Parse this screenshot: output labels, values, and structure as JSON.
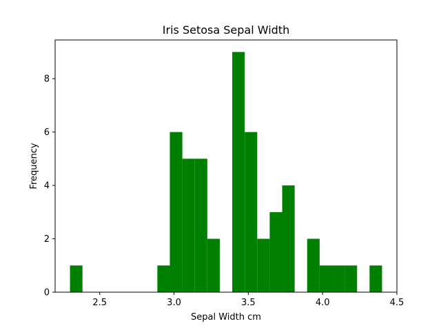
{
  "chart_data": {
    "type": "bar",
    "title": "Iris Setosa Sepal Width",
    "xlabel": "Sepal Width cm",
    "ylabel": "Frequency",
    "bar_color": "#008000",
    "bins": {
      "start": 2.3,
      "width": 0.084,
      "counts": [
        1,
        0,
        0,
        0,
        0,
        0,
        0,
        1,
        6,
        5,
        5,
        2,
        0,
        9,
        6,
        2,
        3,
        4,
        0,
        2,
        1,
        1,
        1,
        0,
        1
      ]
    },
    "xlim": [
      2.2,
      4.5
    ],
    "ylim": [
      0,
      9.45
    ],
    "x_ticks": [
      2.5,
      3.0,
      3.5,
      4.0,
      4.5
    ],
    "x_tick_labels": [
      "2.5",
      "3.0",
      "3.5",
      "4.0",
      "4.5"
    ],
    "y_ticks": [
      0,
      2,
      4,
      6,
      8
    ],
    "y_tick_labels": [
      "0",
      "2",
      "4",
      "6",
      "8"
    ],
    "grid": false,
    "legend": "none"
  }
}
